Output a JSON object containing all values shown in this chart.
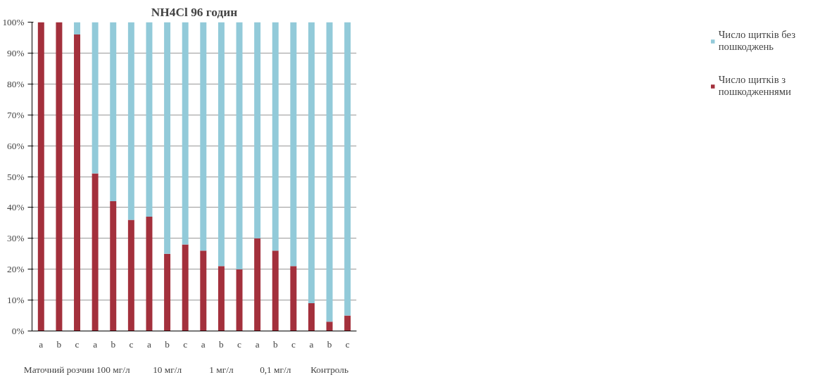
{
  "chart_data": {
    "type": "bar",
    "title": "NH4Cl 96 годин",
    "stacked": true,
    "categories": [
      "a",
      "b",
      "c",
      "a",
      "b",
      "c",
      "a",
      "b",
      "c",
      "a",
      "b",
      "c",
      "a",
      "b",
      "c",
      "a",
      "b",
      "c"
    ],
    "series": [
      {
        "name": "Число щитків з пошкодженнями",
        "color": "#a3303c",
        "values": [
          100,
          100,
          96,
          51,
          42,
          36,
          37,
          25,
          28,
          26,
          21,
          20,
          30,
          26,
          21,
          9,
          3,
          5
        ]
      },
      {
        "name": "Число щитків без пошкоджень",
        "color": "#92cad9",
        "values": [
          0,
          0,
          4,
          49,
          58,
          64,
          63,
          75,
          72,
          74,
          79,
          80,
          70,
          74,
          79,
          91,
          97,
          95
        ]
      }
    ],
    "annotations": [
      "Маточний розчин",
      "100 мг/л",
      "10 мг/л",
      "1 мг/л",
      "0,1 мг/л",
      "Контроль"
    ],
    "ylim": [
      0,
      100
    ],
    "yticks": [
      {
        "value": 0,
        "label": "0%"
      },
      {
        "value": 10,
        "label": "10%"
      },
      {
        "value": 20,
        "label": "20%"
      },
      {
        "value": 30,
        "label": "30%"
      },
      {
        "value": 40,
        "label": "40%"
      },
      {
        "value": 50,
        "label": "50%"
      },
      {
        "value": 60,
        "label": "60%"
      },
      {
        "value": 70,
        "label": "70%"
      },
      {
        "value": 80,
        "label": "80%"
      },
      {
        "value": 90,
        "label": "90%"
      },
      {
        "value": 100,
        "label": "100%"
      }
    ],
    "grid": "y",
    "legend": "right"
  }
}
